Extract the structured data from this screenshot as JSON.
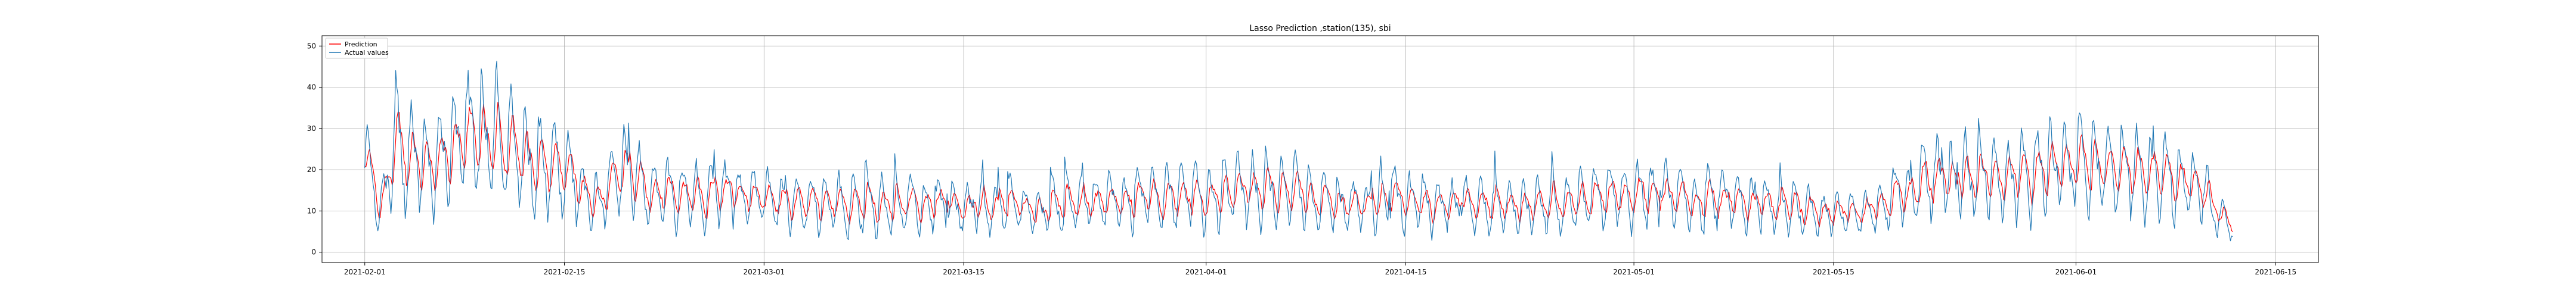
{
  "chart_data": {
    "type": "line",
    "title": "Lasso Prediction ,station(135), sbi",
    "xlabel": "",
    "ylabel": "",
    "xlim": [
      "2021-01-29",
      "2021-06-18"
    ],
    "ylim": [
      -2.5,
      52.5
    ],
    "grid": true,
    "legend_position": "top-left",
    "x_ticks": [
      "2021-02-01",
      "2021-02-15",
      "2021-03-01",
      "2021-03-15",
      "2021-04-01",
      "2021-04-15",
      "2021-05-01",
      "2021-05-15",
      "2021-06-01",
      "2021-06-15"
    ],
    "y_ticks": [
      0,
      10,
      20,
      30,
      40,
      50
    ],
    "series": [
      {
        "name": "Prediction",
        "color": "#ff0000",
        "anchors": [
          {
            "x": "2021-02-01",
            "y": 21
          },
          {
            "x": "2021-02-02",
            "y": 12
          },
          {
            "x": "2021-02-03",
            "y": 26
          },
          {
            "x": "2021-02-05",
            "y": 20
          },
          {
            "x": "2021-02-07",
            "y": 24
          },
          {
            "x": "2021-02-09",
            "y": 28
          },
          {
            "x": "2021-02-11",
            "y": 24
          },
          {
            "x": "2021-02-13",
            "y": 22
          },
          {
            "x": "2021-02-15",
            "y": 21
          },
          {
            "x": "2021-02-17",
            "y": 12
          },
          {
            "x": "2021-02-19",
            "y": 20
          },
          {
            "x": "2021-02-21",
            "y": 14
          },
          {
            "x": "2021-02-25",
            "y": 14
          },
          {
            "x": "2021-03-01",
            "y": 13
          },
          {
            "x": "2021-03-05",
            "y": 12
          },
          {
            "x": "2021-03-10",
            "y": 12
          },
          {
            "x": "2021-03-15",
            "y": 12
          },
          {
            "x": "2021-03-20",
            "y": 11
          },
          {
            "x": "2021-03-25",
            "y": 12
          },
          {
            "x": "2021-04-01",
            "y": 13
          },
          {
            "x": "2021-04-05",
            "y": 16
          },
          {
            "x": "2021-04-10",
            "y": 12
          },
          {
            "x": "2021-04-15",
            "y": 12
          },
          {
            "x": "2021-04-20",
            "y": 12
          },
          {
            "x": "2021-04-25",
            "y": 12
          },
          {
            "x": "2021-05-01",
            "y": 14
          },
          {
            "x": "2021-05-05",
            "y": 13
          },
          {
            "x": "2021-05-10",
            "y": 12
          },
          {
            "x": "2021-05-15",
            "y": 10
          },
          {
            "x": "2021-05-18",
            "y": 12
          },
          {
            "x": "2021-05-22",
            "y": 17
          },
          {
            "x": "2021-05-26",
            "y": 18
          },
          {
            "x": "2021-06-01",
            "y": 21
          },
          {
            "x": "2021-06-05",
            "y": 20
          },
          {
            "x": "2021-06-09",
            "y": 18
          },
          {
            "x": "2021-06-12",
            "y": 8
          }
        ]
      },
      {
        "name": "Actual values",
        "color": "#1f77b4",
        "anchors": [
          {
            "x": "2021-02-01",
            "y": 22
          },
          {
            "x": "2021-02-02",
            "y": 10
          },
          {
            "x": "2021-02-03",
            "y": 28
          },
          {
            "x": "2021-02-05",
            "y": 21
          },
          {
            "x": "2021-02-07",
            "y": 25
          },
          {
            "x": "2021-02-09",
            "y": 30
          },
          {
            "x": "2021-02-11",
            "y": 25
          },
          {
            "x": "2021-02-13",
            "y": 23
          },
          {
            "x": "2021-02-15",
            "y": 20
          },
          {
            "x": "2021-02-17",
            "y": 11
          },
          {
            "x": "2021-02-19",
            "y": 21
          },
          {
            "x": "2021-02-21",
            "y": 14
          },
          {
            "x": "2021-02-25",
            "y": 14
          },
          {
            "x": "2021-03-01",
            "y": 13
          },
          {
            "x": "2021-03-05",
            "y": 12
          },
          {
            "x": "2021-03-10",
            "y": 12
          },
          {
            "x": "2021-03-15",
            "y": 11
          },
          {
            "x": "2021-03-20",
            "y": 11
          },
          {
            "x": "2021-03-25",
            "y": 12
          },
          {
            "x": "2021-04-01",
            "y": 14
          },
          {
            "x": "2021-04-05",
            "y": 16
          },
          {
            "x": "2021-04-10",
            "y": 12
          },
          {
            "x": "2021-04-15",
            "y": 12
          },
          {
            "x": "2021-04-20",
            "y": 11
          },
          {
            "x": "2021-04-25",
            "y": 12
          },
          {
            "x": "2021-05-01",
            "y": 14
          },
          {
            "x": "2021-05-05",
            "y": 13
          },
          {
            "x": "2021-05-10",
            "y": 12
          },
          {
            "x": "2021-05-15",
            "y": 9
          },
          {
            "x": "2021-05-18",
            "y": 11
          },
          {
            "x": "2021-05-22",
            "y": 18
          },
          {
            "x": "2021-05-26",
            "y": 18
          },
          {
            "x": "2021-06-01",
            "y": 21
          },
          {
            "x": "2021-06-05",
            "y": 20
          },
          {
            "x": "2021-06-09",
            "y": 17
          },
          {
            "x": "2021-06-12",
            "y": 5
          }
        ]
      }
    ]
  }
}
